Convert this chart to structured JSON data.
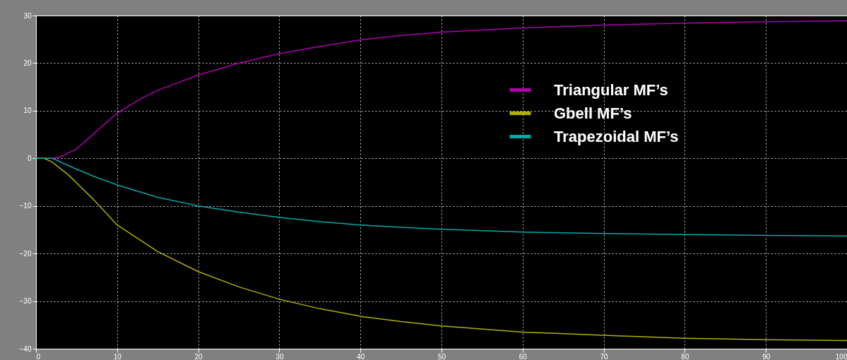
{
  "chart_data": {
    "type": "line",
    "xlim": [
      0,
      100
    ],
    "xticks": [
      0,
      10,
      20,
      30,
      40,
      50,
      60,
      70,
      80,
      90,
      100
    ],
    "ylim": [
      -40,
      30
    ],
    "yticks": [
      -40,
      -30,
      -20,
      -10,
      0,
      10,
      20,
      30
    ],
    "grid": true,
    "legend": "top right",
    "series": [
      {
        "name": "Triangular MF’s",
        "color": "#b000b0",
        "x": [
          0,
          2,
          3,
          5,
          7,
          10,
          13,
          15,
          20,
          25,
          30,
          35,
          40,
          45,
          50,
          60,
          70,
          80,
          90,
          100
        ],
        "values": [
          0,
          0,
          0.3,
          2,
          5,
          9.5,
          12.6,
          14.3,
          17.5,
          20,
          22,
          23.5,
          24.9,
          25.8,
          26.5,
          27.4,
          28,
          28.4,
          28.7,
          28.9
        ]
      },
      {
        "name": "Gbell MF’s",
        "color": "#b0b000",
        "x": [
          0,
          1,
          2,
          4,
          7,
          10,
          15,
          20,
          25,
          30,
          35,
          40,
          45,
          50,
          60,
          70,
          80,
          90,
          100
        ],
        "values": [
          0,
          0,
          -0.8,
          -3.5,
          -8.5,
          -14,
          -19.6,
          -23.8,
          -27,
          -29.6,
          -31.6,
          -33.2,
          -34.3,
          -35.2,
          -36.5,
          -37.2,
          -37.8,
          -38.1,
          -38.3
        ]
      },
      {
        "name": "Trapezoidal MF’s",
        "color": "#00a8a8",
        "x": [
          0,
          2,
          5,
          7,
          10,
          15,
          20,
          25,
          30,
          35,
          40,
          45,
          50,
          60,
          70,
          80,
          90,
          100
        ],
        "values": [
          0,
          0,
          -2.3,
          -3.7,
          -5.6,
          -8.2,
          -10,
          -11.3,
          -12.4,
          -13.3,
          -14,
          -14.5,
          -14.9,
          -15.5,
          -15.8,
          -16,
          -16.2,
          -16.3
        ]
      }
    ]
  }
}
